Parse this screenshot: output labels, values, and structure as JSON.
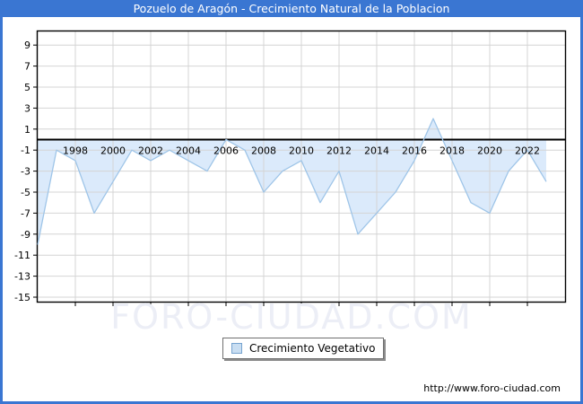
{
  "window": {
    "title": "Pozuelo de Aragón - Crecimiento Natural de la Poblacion"
  },
  "legend": {
    "label": "Crecimiento Vegetativo"
  },
  "watermark": {
    "text": "FORO-CIUDAD.COM"
  },
  "footer": {
    "url": "http://www.foro-ciudad.com"
  },
  "colors": {
    "titlebar": "#3a76d2",
    "frame": "#3a76d2",
    "area_fill": "#dbeafb",
    "line": "#9fc5e8",
    "grid": "#d4d4d4",
    "axis": "#000000",
    "tick_text": "#000000",
    "watermark": "#eceef6",
    "legend_swatch_fill": "#c9def2",
    "legend_swatch_border": "#76a3cf"
  },
  "chart_data": {
    "type": "area",
    "title": "Pozuelo de Aragón - Crecimiento Natural de la Poblacion",
    "series_name": "Crecimiento Vegetativo",
    "x": [
      1996,
      1997,
      1998,
      1999,
      2000,
      2001,
      2002,
      2003,
      2004,
      2005,
      2006,
      2007,
      2008,
      2009,
      2010,
      2011,
      2012,
      2013,
      2014,
      2015,
      2016,
      2017,
      2018,
      2019,
      2020,
      2021,
      2022,
      2023
    ],
    "values": [
      -10,
      -1,
      -2,
      -7,
      -4,
      -1,
      -2,
      -1,
      -2,
      -3,
      0,
      -1,
      -5,
      -3,
      -2,
      -6,
      -3,
      -9,
      -7,
      -5,
      -2,
      2,
      -2,
      -6,
      -7,
      -3,
      -1,
      -4
    ],
    "baseline": 0,
    "yticks": [
      9,
      7,
      5,
      3,
      1,
      -1,
      -3,
      -5,
      -7,
      -9,
      -11,
      -13,
      -15
    ],
    "xticks": [
      1998,
      2000,
      2002,
      2004,
      2006,
      2008,
      2010,
      2012,
      2014,
      2016,
      2018,
      2020,
      2022
    ],
    "xlim": [
      1996,
      2024
    ],
    "ylim": [
      -15.7,
      10.4
    ],
    "grid": true,
    "legend_position": "bottom-center"
  }
}
